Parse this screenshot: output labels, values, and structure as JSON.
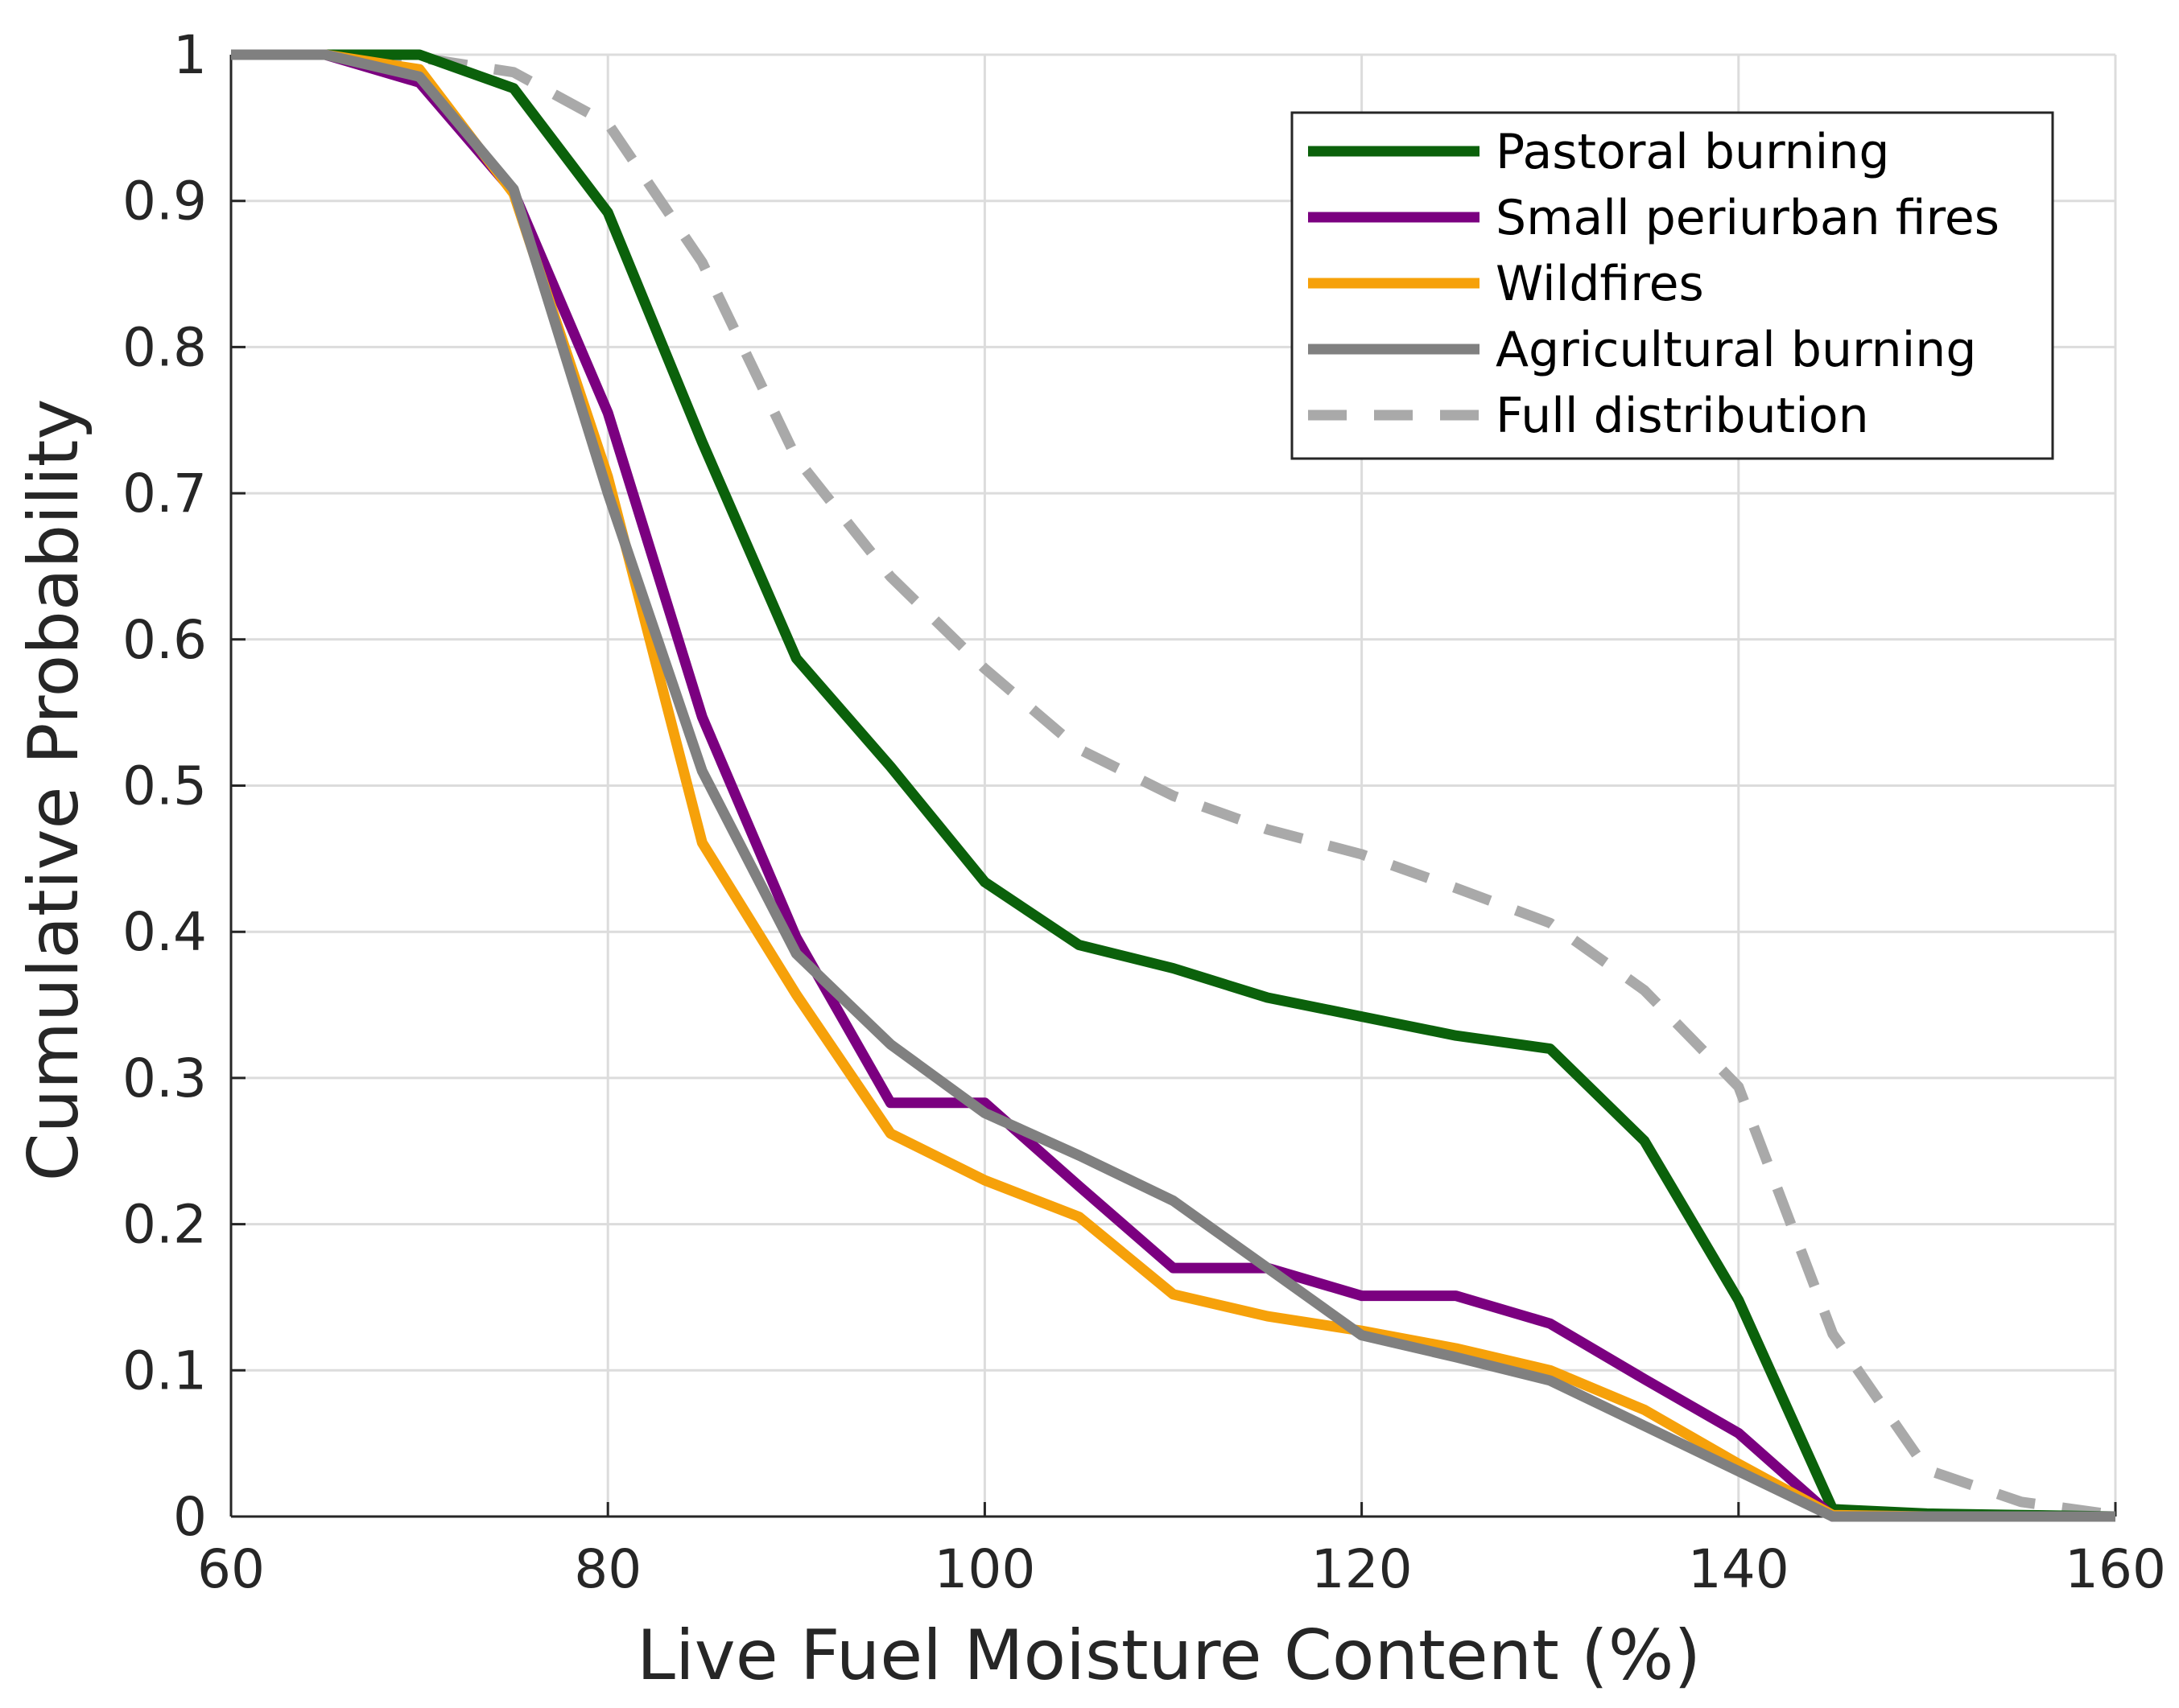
{
  "chart_data": {
    "type": "line",
    "title": "",
    "xlabel": "Live Fuel Moisture Content (%)",
    "ylabel": "Cumulative Probability",
    "xlim": [
      60,
      160
    ],
    "ylim": [
      0,
      1
    ],
    "xticks": [
      "60",
      "80",
      "100",
      "120",
      "140",
      "160"
    ],
    "yticks": [
      "0",
      "0.1",
      "0.2",
      "0.3",
      "0.4",
      "0.5",
      "0.6",
      "0.7",
      "0.8",
      "0.9",
      "1"
    ],
    "grid": true,
    "legend_position": "top-right",
    "x": [
      60,
      65,
      70,
      75,
      80,
      85,
      90,
      95,
      100,
      105,
      110,
      115,
      120,
      125,
      130,
      135,
      140,
      145,
      150,
      155,
      160
    ],
    "series": [
      {
        "name": "Pastoral burning",
        "color": "#0b610b",
        "dash": "solid",
        "values": [
          1.0,
          1.0,
          1.0,
          0.977,
          0.892,
          0.735,
          0.587,
          0.513,
          0.434,
          0.391,
          0.375,
          0.355,
          0.342,
          0.329,
          0.32,
          0.257,
          0.148,
          0.005,
          0.002,
          0.001,
          0.0
        ]
      },
      {
        "name": "Small periurban fires",
        "color": "#7b0080",
        "dash": "solid",
        "values": [
          1.0,
          1.0,
          0.981,
          0.906,
          0.755,
          0.547,
          0.396,
          0.283,
          0.283,
          0.226,
          0.17,
          0.17,
          0.151,
          0.151,
          0.132,
          0.094,
          0.057,
          0.0,
          0.0,
          0.0,
          0.0
        ]
      },
      {
        "name": "Wildfires",
        "color": "#f6a10a",
        "dash": "solid",
        "values": [
          1.0,
          1.0,
          0.99,
          0.905,
          0.711,
          0.461,
          0.357,
          0.262,
          0.23,
          0.205,
          0.152,
          0.137,
          0.127,
          0.115,
          0.1,
          0.073,
          0.036,
          0.001,
          0.0,
          0.0,
          0.0
        ]
      },
      {
        "name": "Agricultural burning",
        "color": "#808080",
        "dash": "solid",
        "values": [
          1.0,
          1.0,
          0.985,
          0.908,
          0.7,
          0.51,
          0.385,
          0.323,
          0.276,
          0.247,
          0.216,
          0.17,
          0.124,
          0.109,
          0.093,
          0.062,
          0.031,
          0.0,
          0.0,
          0.0,
          0.0
        ]
      },
      {
        "name": "Full distribution",
        "color": "#a9a9a9",
        "dash": "dashed",
        "values": [
          1.0,
          1.0,
          0.998,
          0.988,
          0.953,
          0.858,
          0.724,
          0.643,
          0.58,
          0.525,
          0.493,
          0.47,
          0.453,
          0.43,
          0.406,
          0.36,
          0.294,
          0.125,
          0.032,
          0.01,
          0.001
        ]
      }
    ]
  }
}
